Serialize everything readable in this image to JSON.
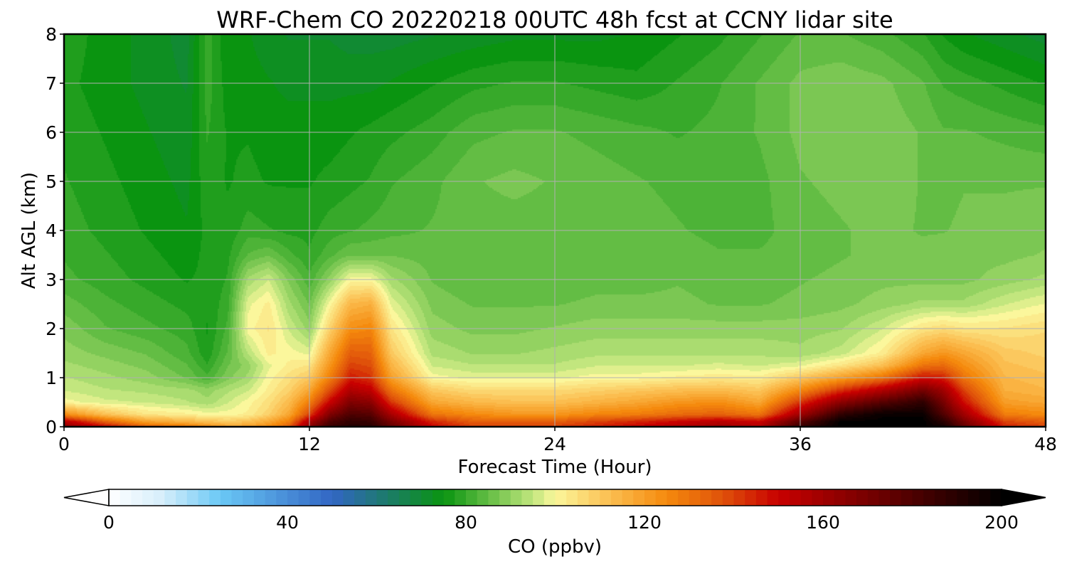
{
  "chart_data": {
    "type": "heatmap",
    "title": "WRF-Chem CO  20220218 00UTC 48h fcst at CCNY lidar site",
    "xlabel": "Forecast Time (Hour)",
    "ylabel": "Alt AGL (km)",
    "xlim": [
      0,
      48
    ],
    "ylim": [
      0,
      8
    ],
    "xticks": [
      0,
      12,
      24,
      36,
      48
    ],
    "xtick_labels": [
      "0",
      "12",
      "24",
      "36",
      "48"
    ],
    "yticks": [
      0,
      1,
      2,
      3,
      4,
      5,
      6,
      7,
      8
    ],
    "ytick_labels": [
      "0",
      "1",
      "2",
      "3",
      "4",
      "5",
      "6",
      "7",
      "8"
    ],
    "grid": true,
    "x": [
      0,
      2,
      4,
      6,
      7,
      8,
      9,
      10,
      11,
      12,
      13,
      14,
      15,
      16,
      18,
      20,
      22,
      24,
      26,
      28,
      30,
      32,
      34,
      36,
      38,
      40,
      42,
      43,
      44,
      46,
      48
    ],
    "y": [
      0,
      0.1,
      0.25,
      0.5,
      0.75,
      1,
      1.25,
      1.5,
      2,
      2.5,
      3,
      3.5,
      4,
      5,
      6,
      7,
      8
    ],
    "values_note": "z[i][j] = CO (ppbv) at altitude y[i] and forecast hour x[j]",
    "z": [
      [
        165,
        150,
        135,
        130,
        125,
        120,
        120,
        125,
        135,
        165,
        185,
        190,
        190,
        175,
        150,
        140,
        140,
        140,
        145,
        150,
        155,
        160,
        155,
        185,
        200,
        200,
        200,
        195,
        175,
        145,
        140
      ],
      [
        155,
        135,
        120,
        115,
        112,
        110,
        112,
        118,
        128,
        158,
        180,
        188,
        186,
        170,
        145,
        135,
        135,
        135,
        140,
        145,
        150,
        155,
        150,
        178,
        200,
        200,
        200,
        190,
        170,
        140,
        135
      ],
      [
        125,
        112,
        104,
        102,
        100,
        100,
        102,
        108,
        118,
        140,
        168,
        180,
        178,
        158,
        130,
        125,
        122,
        122,
        126,
        128,
        132,
        134,
        130,
        160,
        188,
        198,
        198,
        180,
        160,
        128,
        125
      ],
      [
        100,
        97,
        96,
        94,
        92,
        96,
        100,
        105,
        113,
        128,
        150,
        168,
        165,
        142,
        118,
        114,
        112,
        112,
        115,
        118,
        122,
        124,
        118,
        142,
        165,
        178,
        188,
        170,
        148,
        120,
        118
      ],
      [
        96,
        94,
        93,
        92,
        90,
        93,
        96,
        102,
        108,
        118,
        138,
        156,
        152,
        130,
        110,
        106,
        106,
        106,
        108,
        110,
        112,
        113,
        110,
        125,
        142,
        155,
        170,
        160,
        140,
        116,
        114
      ],
      [
        94,
        92,
        90,
        86,
        82,
        88,
        92,
        100,
        105,
        110,
        128,
        146,
        142,
        120,
        100,
        98,
        98,
        98,
        100,
        100,
        102,
        103,
        102,
        110,
        120,
        130,
        148,
        145,
        130,
        114,
        112
      ],
      [
        92,
        90,
        88,
        84,
        79,
        86,
        90,
        98,
        102,
        104,
        122,
        140,
        138,
        115,
        96,
        94,
        94,
        94,
        96,
        96,
        96,
        97,
        96,
        98,
        104,
        112,
        130,
        132,
        124,
        112,
        110
      ],
      [
        90,
        88,
        86,
        82,
        77,
        84,
        94,
        102,
        100,
        98,
        118,
        135,
        134,
        110,
        93,
        91,
        91,
        92,
        93,
        93,
        93,
        93,
        93,
        92,
        95,
        102,
        118,
        122,
        118,
        110,
        108
      ],
      [
        88,
        84,
        82,
        80,
        76,
        82,
        100,
        104,
        96,
        90,
        108,
        124,
        126,
        104,
        90,
        88,
        88,
        89,
        90,
        90,
        90,
        90,
        90,
        90,
        91,
        96,
        104,
        106,
        104,
        104,
        106
      ],
      [
        85,
        82,
        80,
        78,
        77,
        80,
        98,
        102,
        92,
        86,
        100,
        114,
        116,
        98,
        88,
        86,
        86,
        86,
        87,
        87,
        87,
        86,
        86,
        87,
        88,
        90,
        92,
        92,
        92,
        96,
        99
      ],
      [
        82,
        80,
        78,
        76,
        77,
        79,
        92,
        96,
        88,
        82,
        90,
        100,
        100,
        92,
        86,
        84,
        84,
        84,
        85,
        85,
        86,
        85,
        85,
        86,
        87,
        88,
        88,
        88,
        88,
        90,
        92
      ],
      [
        81,
        79,
        77,
        75,
        77,
        78,
        84,
        86,
        82,
        79,
        83,
        86,
        86,
        86,
        85,
        84,
        84,
        84,
        84,
        84,
        85,
        84,
        84,
        85,
        86,
        87,
        87,
        88,
        88,
        88,
        89
      ],
      [
        80,
        78,
        76,
        74,
        77,
        77,
        80,
        79,
        78,
        78,
        80,
        81,
        82,
        83,
        84,
        85,
        85,
        85,
        85,
        85,
        84,
        83,
        83,
        85,
        86,
        87,
        86,
        86,
        87,
        87,
        88
      ],
      [
        79,
        77,
        75,
        73,
        78,
        76,
        77,
        76,
        76,
        76,
        77,
        78,
        79,
        81,
        83,
        86,
        87,
        86,
        85,
        84,
        83,
        82,
        83,
        86,
        87,
        88,
        86,
        85,
        86,
        86,
        86
      ],
      [
        78,
        76,
        74,
        72,
        79,
        76,
        76,
        75,
        75,
        75,
        75,
        76,
        77,
        78,
        80,
        83,
        84,
        84,
        83,
        82,
        81,
        82,
        84,
        87,
        88,
        88,
        86,
        84,
        84,
        83,
        82
      ],
      [
        77,
        75,
        73,
        71,
        80,
        75,
        75,
        74,
        73,
        73,
        73,
        73,
        73,
        74,
        76,
        78,
        79,
        79,
        78,
        77,
        79,
        81,
        84,
        87,
        88,
        87,
        84,
        81,
        80,
        78,
        76
      ],
      [
        78,
        75,
        73,
        70,
        80,
        74,
        74,
        72,
        71,
        71,
        71,
        70,
        70,
        70,
        71,
        72,
        73,
        73,
        73,
        74,
        76,
        78,
        81,
        84,
        84,
        82,
        79,
        76,
        74,
        72,
        70
      ]
    ],
    "colorbar": {
      "label": "CO  (ppbv)",
      "orientation": "horizontal",
      "extend": "both",
      "range": [
        0,
        200
      ],
      "ticks": [
        0,
        40,
        80,
        120,
        160,
        200
      ],
      "tick_labels": [
        "0",
        "40",
        "80",
        "120",
        "160",
        "200"
      ],
      "colormap_stops": [
        {
          "value": 0,
          "color": "#ffffff"
        },
        {
          "value": 12,
          "color": "#d6eefb"
        },
        {
          "value": 25,
          "color": "#6ac8f5"
        },
        {
          "value": 50,
          "color": "#3266c4"
        },
        {
          "value": 62,
          "color": "#1d7a6c"
        },
        {
          "value": 75,
          "color": "#0a9410"
        },
        {
          "value": 85,
          "color": "#63bd44"
        },
        {
          "value": 95,
          "color": "#c2e67e"
        },
        {
          "value": 100,
          "color": "#fbf79c"
        },
        {
          "value": 112,
          "color": "#fbbf52"
        },
        {
          "value": 125,
          "color": "#f58a0d"
        },
        {
          "value": 137,
          "color": "#e0540a"
        },
        {
          "value": 150,
          "color": "#c80000"
        },
        {
          "value": 165,
          "color": "#8b0000"
        },
        {
          "value": 185,
          "color": "#3a0000"
        },
        {
          "value": 200,
          "color": "#000000"
        }
      ]
    }
  }
}
